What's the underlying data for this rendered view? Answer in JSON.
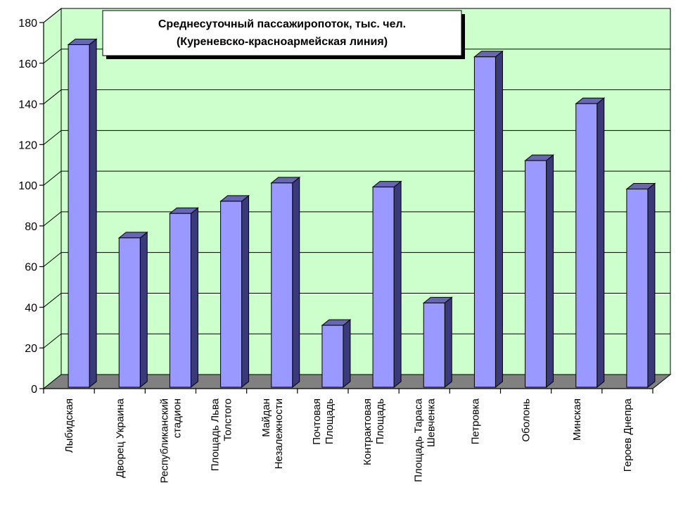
{
  "chart_data": {
    "type": "bar",
    "title_lines": [
      "Среднесуточный пассажиропоток, тыс. чел.",
      "(Куреневско-красноармейская линия)"
    ],
    "categories": [
      [
        "Лыбидская"
      ],
      [
        "Дворец Украина"
      ],
      [
        "Республиканский",
        "стадион"
      ],
      [
        "Площадь Льва",
        "Толстого"
      ],
      [
        "Майдан",
        "Незалежности"
      ],
      [
        "Почтовая",
        "Площадь"
      ],
      [
        "Контрактовая",
        "Площадь"
      ],
      [
        "Площадь Тараса",
        "Шевченка"
      ],
      [
        "Петровка"
      ],
      [
        "Оболонь"
      ],
      [
        "Минская"
      ],
      [
        "Героев Днепра"
      ]
    ],
    "values": [
      166,
      71,
      83,
      89,
      98,
      28,
      96,
      39,
      160,
      109,
      137,
      95
    ],
    "ylim": [
      0,
      180
    ],
    "yticks": [
      0,
      20,
      40,
      60,
      80,
      100,
      120,
      140,
      160,
      180
    ],
    "grid": true,
    "colors": {
      "wall": "#ccffcc",
      "floor": "#808080",
      "bar_front": "#9999ff",
      "bar_side": "#3a3a7a",
      "bar_top": "#6666b3",
      "grid": "#000000"
    }
  }
}
